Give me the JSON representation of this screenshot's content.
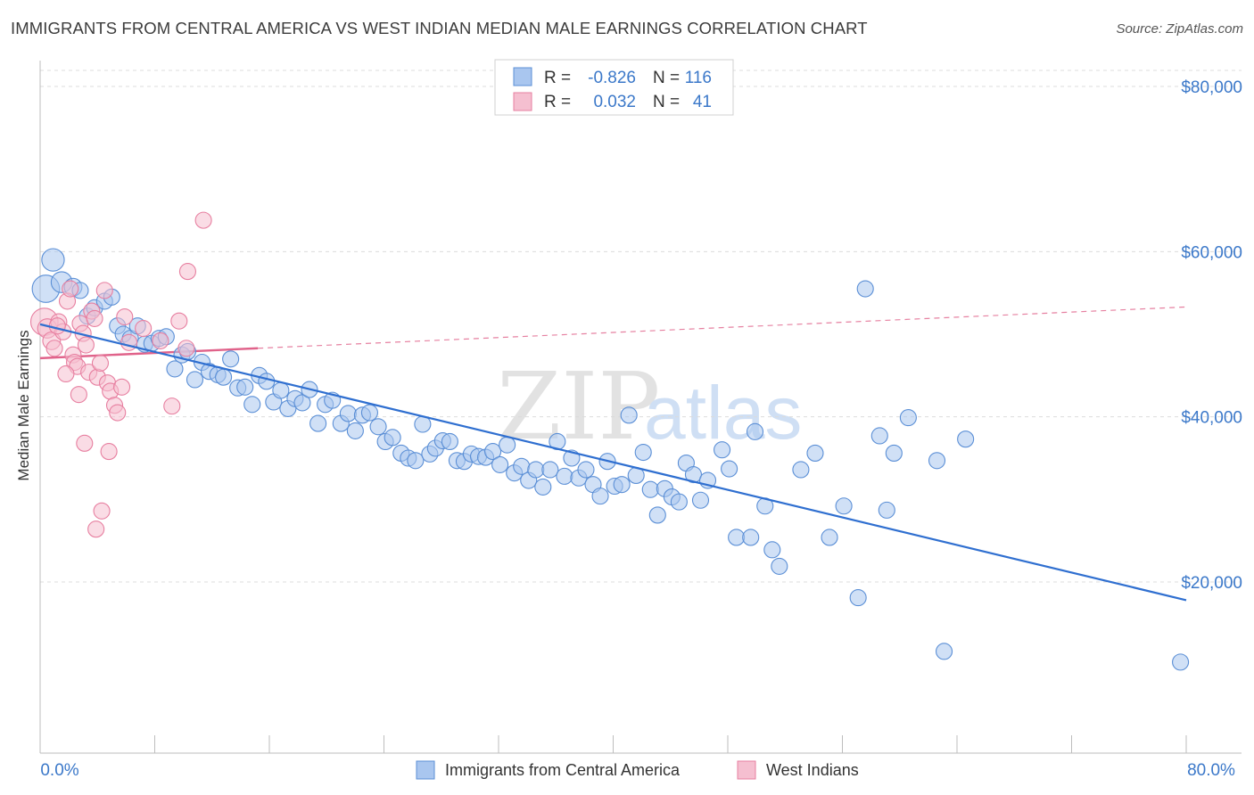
{
  "title": "IMMIGRANTS FROM CENTRAL AMERICA VS WEST INDIAN MEDIAN MALE EARNINGS CORRELATION CHART",
  "source": "Source: ZipAtlas.com",
  "watermark": {
    "zip": "ZIP",
    "atlas": "atlas"
  },
  "colors": {
    "blue_fill": "#a9c6ef",
    "blue_stroke": "#5b8fd6",
    "blue_line": "#2f6fd0",
    "pink_fill": "#f5bfd0",
    "pink_stroke": "#e77fa0",
    "pink_line": "#e0628a",
    "tick_text": "#3b78c9",
    "grid": "#dcdcdc"
  },
  "legend": {
    "r_label": "R =",
    "n_label": "N =",
    "rows": [
      {
        "r": "-0.826",
        "n": "116",
        "swatch": "blue"
      },
      {
        "r": "0.032",
        "n": "41",
        "swatch": "pink"
      }
    ]
  },
  "bottom_legend": [
    "Immigrants from Central America",
    "West Indians"
  ],
  "chart_data": {
    "type": "scatter",
    "title": "IMMIGRANTS FROM CENTRAL AMERICA VS WEST INDIAN MEDIAN MALE EARNINGS CORRELATION CHART",
    "xlabel": "",
    "ylabel": "Median Male Earnings",
    "xlim": [
      0,
      80
    ],
    "ylim": [
      2500,
      84000
    ],
    "x_tick_labels": [
      "0.0%",
      "80.0%"
    ],
    "y_ticks": [
      20000,
      40000,
      60000,
      80000
    ],
    "y_tick_labels": [
      "$20,000",
      "$40,000",
      "$60,000",
      "$80,000"
    ],
    "grid": "horizontal dashed",
    "legend_position": "top-center",
    "series": [
      {
        "name": "Immigrants from Central America",
        "color": "blue",
        "trend": {
          "x": [
            0,
            80
          ],
          "y": [
            51200,
            17800
          ],
          "style": "solid"
        },
        "points": [
          [
            0.4,
            55500,
            1.7
          ],
          [
            0.9,
            59000,
            1.4
          ],
          [
            1.5,
            56300,
            1.3
          ],
          [
            2.3,
            55700,
            1.1
          ],
          [
            2.8,
            55300,
            1.0
          ],
          [
            3.3,
            52200,
            1.0
          ],
          [
            3.8,
            53200,
            1.0
          ],
          [
            4.5,
            54000,
            1.0
          ],
          [
            5.0,
            54500,
            1.0
          ],
          [
            5.4,
            51000,
            1.0
          ],
          [
            5.8,
            50000,
            1.0
          ],
          [
            6.3,
            49500,
            1.0
          ],
          [
            6.8,
            51000,
            1.0
          ],
          [
            7.3,
            48800,
            1.0
          ],
          [
            7.8,
            48900,
            1.0
          ],
          [
            8.3,
            49500,
            1.0
          ],
          [
            8.8,
            49700,
            1.0
          ],
          [
            9.4,
            45800,
            1.0
          ],
          [
            9.9,
            47500,
            1.0
          ],
          [
            10.3,
            47900,
            1.0
          ],
          [
            10.8,
            44500,
            1.0
          ],
          [
            11.3,
            46600,
            1.0
          ],
          [
            11.8,
            45500,
            1.0
          ],
          [
            12.4,
            45100,
            1.0
          ],
          [
            12.8,
            44800,
            1.0
          ],
          [
            13.3,
            47000,
            1.0
          ],
          [
            13.8,
            43500,
            1.0
          ],
          [
            14.3,
            43600,
            1.0
          ],
          [
            14.8,
            41500,
            1.0
          ],
          [
            15.3,
            45000,
            1.0
          ],
          [
            15.8,
            44300,
            1.0
          ],
          [
            16.3,
            41800,
            1.0
          ],
          [
            16.8,
            43200,
            1.0
          ],
          [
            17.3,
            41000,
            1.0
          ],
          [
            17.8,
            42200,
            1.0
          ],
          [
            18.3,
            41700,
            1.0
          ],
          [
            18.8,
            43300,
            1.0
          ],
          [
            19.4,
            39200,
            1.0
          ],
          [
            19.9,
            41500,
            1.0
          ],
          [
            20.4,
            42000,
            1.0
          ],
          [
            21.0,
            39200,
            1.0
          ],
          [
            21.5,
            40400,
            1.0
          ],
          [
            22.0,
            38300,
            1.0
          ],
          [
            22.5,
            40200,
            1.0
          ],
          [
            23.0,
            40500,
            1.0
          ],
          [
            23.6,
            38800,
            1.0
          ],
          [
            24.1,
            37000,
            1.0
          ],
          [
            24.6,
            37500,
            1.0
          ],
          [
            25.2,
            35600,
            1.0
          ],
          [
            25.7,
            35000,
            1.0
          ],
          [
            26.2,
            34700,
            1.0
          ],
          [
            26.7,
            39100,
            1.0
          ],
          [
            27.2,
            35500,
            1.0
          ],
          [
            27.6,
            36200,
            1.0
          ],
          [
            28.1,
            37100,
            1.0
          ],
          [
            28.6,
            37000,
            1.0
          ],
          [
            29.1,
            34700,
            1.0
          ],
          [
            29.6,
            34600,
            1.0
          ],
          [
            30.1,
            35500,
            1.0
          ],
          [
            30.6,
            35200,
            1.0
          ],
          [
            31.1,
            35100,
            1.0
          ],
          [
            31.6,
            35800,
            1.0
          ],
          [
            32.1,
            34200,
            1.0
          ],
          [
            32.6,
            36600,
            1.0
          ],
          [
            33.1,
            33200,
            1.0
          ],
          [
            33.6,
            34000,
            1.0
          ],
          [
            34.1,
            32300,
            1.0
          ],
          [
            34.6,
            33600,
            1.0
          ],
          [
            35.1,
            31500,
            1.0
          ],
          [
            35.6,
            33600,
            1.0
          ],
          [
            36.1,
            37000,
            1.0
          ],
          [
            36.6,
            32800,
            1.0
          ],
          [
            37.1,
            35000,
            1.0
          ],
          [
            37.6,
            32600,
            1.0
          ],
          [
            38.1,
            33600,
            1.0
          ],
          [
            38.6,
            31800,
            1.0
          ],
          [
            39.1,
            30400,
            1.0
          ],
          [
            39.6,
            34600,
            1.0
          ],
          [
            40.1,
            31600,
            1.0
          ],
          [
            40.6,
            31800,
            1.0
          ],
          [
            41.1,
            40200,
            1.0
          ],
          [
            41.6,
            32900,
            1.0
          ],
          [
            42.1,
            35700,
            1.0
          ],
          [
            42.6,
            31200,
            1.0
          ],
          [
            43.1,
            28100,
            1.0
          ],
          [
            43.6,
            31300,
            1.0
          ],
          [
            44.1,
            30300,
            1.0
          ],
          [
            44.6,
            29700,
            1.0
          ],
          [
            45.1,
            34400,
            1.0
          ],
          [
            45.6,
            33000,
            1.0
          ],
          [
            46.1,
            29900,
            1.0
          ],
          [
            46.6,
            32300,
            1.0
          ],
          [
            47.6,
            36000,
            1.0
          ],
          [
            48.1,
            33700,
            1.0
          ],
          [
            48.6,
            25400,
            1.0
          ],
          [
            49.6,
            25400,
            1.0
          ],
          [
            49.9,
            38200,
            1.0
          ],
          [
            50.6,
            29200,
            1.0
          ],
          [
            51.1,
            23900,
            1.0
          ],
          [
            51.6,
            21900,
            1.0
          ],
          [
            53.1,
            33600,
            1.0
          ],
          [
            54.1,
            35600,
            1.0
          ],
          [
            55.1,
            25400,
            1.0
          ],
          [
            56.1,
            29200,
            1.0
          ],
          [
            57.1,
            18100,
            1.0
          ],
          [
            57.6,
            55500,
            1.0
          ],
          [
            58.6,
            37700,
            1.0
          ],
          [
            59.1,
            28700,
            1.0
          ],
          [
            59.6,
            35600,
            1.0
          ],
          [
            60.6,
            39900,
            1.0
          ],
          [
            62.6,
            34700,
            1.0
          ],
          [
            63.1,
            11600,
            1.0
          ],
          [
            64.6,
            37300,
            1.0
          ],
          [
            79.6,
            10300,
            1.0
          ]
        ]
      },
      {
        "name": "West Indians",
        "color": "pink",
        "trend": {
          "x": [
            0,
            15.2
          ],
          "y": [
            47100,
            48300
          ],
          "style": "solid",
          "extension_to": [
            80,
            53300
          ],
          "extension_style": "dashed"
        },
        "points": [
          [
            0.3,
            51500,
            1.7
          ],
          [
            0.5,
            50700,
            1.2
          ],
          [
            0.8,
            49200,
            1.1
          ],
          [
            1.0,
            48300,
            1.0
          ],
          [
            1.3,
            51500,
            1.0
          ],
          [
            1.6,
            50300,
            1.0
          ],
          [
            1.9,
            54000,
            1.0
          ],
          [
            2.1,
            55500,
            1.0
          ],
          [
            2.3,
            47500,
            1.0
          ],
          [
            2.4,
            46600,
            1.0
          ],
          [
            2.6,
            46100,
            1.0
          ],
          [
            2.8,
            51300,
            1.0
          ],
          [
            3.0,
            50100,
            1.0
          ],
          [
            3.2,
            48700,
            1.0
          ],
          [
            3.4,
            45400,
            1.0
          ],
          [
            3.6,
            52800,
            1.0
          ],
          [
            3.8,
            51900,
            1.0
          ],
          [
            4.0,
            44800,
            1.0
          ],
          [
            4.2,
            46500,
            1.0
          ],
          [
            4.5,
            55300,
            1.0
          ],
          [
            4.7,
            44100,
            1.0
          ],
          [
            4.9,
            43100,
            1.0
          ],
          [
            5.2,
            41400,
            1.0
          ],
          [
            5.4,
            40500,
            1.0
          ],
          [
            5.7,
            43600,
            1.0
          ],
          [
            5.9,
            52100,
            1.0
          ],
          [
            6.2,
            49000,
            1.0
          ],
          [
            1.8,
            45200,
            1.0
          ],
          [
            2.7,
            42700,
            1.0
          ],
          [
            3.1,
            36800,
            1.0
          ],
          [
            3.9,
            26400,
            1.0
          ],
          [
            4.3,
            28600,
            1.0
          ],
          [
            4.8,
            35800,
            1.0
          ],
          [
            7.2,
            50700,
            1.0
          ],
          [
            8.4,
            49200,
            1.0
          ],
          [
            9.2,
            41300,
            1.0
          ],
          [
            9.7,
            51600,
            1.0
          ],
          [
            10.2,
            48300,
            1.0
          ],
          [
            10.3,
            57600,
            1.0
          ],
          [
            11.4,
            63800,
            1.0
          ],
          [
            1.2,
            51000,
            1.0
          ]
        ]
      }
    ]
  }
}
